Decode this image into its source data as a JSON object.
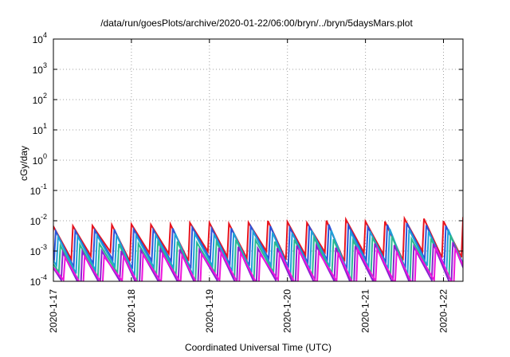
{
  "chart_data": {
    "type": "line",
    "title": "/data/run/goesPlots/archive/2020-01-22/06:00/bryn/../bryn/5daysMars.plot",
    "xlabel": "Coordinated Universal Time (UTC)",
    "ylabel": "cGy/day",
    "yscale": "log",
    "ylim": [
      0.0001,
      10000
    ],
    "xlim": [
      "2020-01-17T00:00",
      "2020-01-22T06:00"
    ],
    "grid": true,
    "legend": "none",
    "yticks": [
      {
        "base": "10",
        "exp": "-4"
      },
      {
        "base": "10",
        "exp": "-3"
      },
      {
        "base": "10",
        "exp": "-2"
      },
      {
        "base": "10",
        "exp": "-1"
      },
      {
        "base": "10",
        "exp": "0"
      },
      {
        "base": "10",
        "exp": "1"
      },
      {
        "base": "10",
        "exp": "2"
      },
      {
        "base": "10",
        "exp": "3"
      },
      {
        "base": "10",
        "exp": "4"
      }
    ],
    "xticks": [
      "2020-1-17",
      "2020-1-18",
      "2020-1-19",
      "2020-1-20",
      "2020-1-21",
      "2020-1-22"
    ],
    "series": [
      {
        "color": "#e8141e",
        "peak_low": 0.0065,
        "peak_high": 0.013,
        "trough": 0.0009,
        "phase": 0.0
      },
      {
        "color": "#2a53d8",
        "peak_low": 0.0045,
        "peak_high": 0.009,
        "trough": 0.0005,
        "phase": 0.03
      },
      {
        "color": "#1ea0d8",
        "peak_low": 0.003,
        "peak_high": 0.006,
        "trough": 0.0003,
        "phase": 0.06
      },
      {
        "color": "#2ab890",
        "peak_low": 0.0015,
        "peak_high": 0.0035,
        "trough": 0.00018,
        "phase": 0.09
      },
      {
        "color": "#8a22d0",
        "peak_low": 0.0009,
        "peak_high": 0.002,
        "trough": 0.0001,
        "phase": 0.12
      },
      {
        "color": "#ee14dc",
        "peak_low": 0.0006,
        "peak_high": 0.0014,
        "trough": 0.0001,
        "phase": 0.15
      }
    ]
  }
}
